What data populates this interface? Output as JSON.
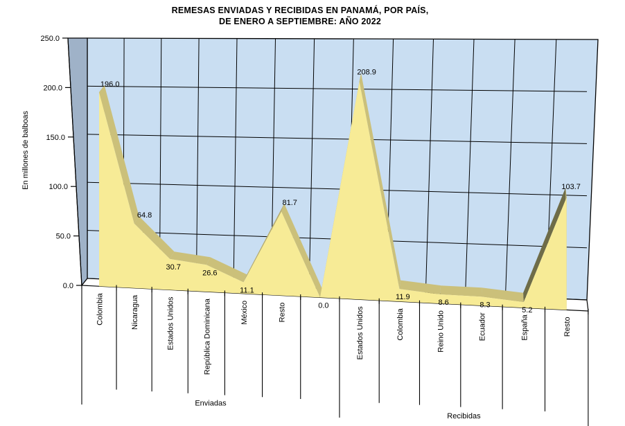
{
  "title": {
    "line1": "REMESAS ENVIADAS Y RECIBIDAS EN PANAMÁ, POR PAÍS,",
    "line2": "DE ENERO A SEPTIEMBRE: AÑO 2022"
  },
  "chart_data": {
    "type": "area",
    "projection": "3d",
    "title": "REMESAS ENVIADAS Y RECIBIDAS EN PANAMÁ, POR PAÍS, DE ENERO A SEPTIEMBRE: AÑO 2022",
    "ylabel": "En millones de balboas",
    "ylim": [
      0,
      250
    ],
    "y_tick_step": 50,
    "y_tick_labels": [
      "0.0",
      "50.0",
      "100.0",
      "150.0",
      "200.0",
      "250.0"
    ],
    "grid": true,
    "categories": [
      "Colombia",
      "Nicaragua",
      "Estados Unidos",
      "República Dominicana",
      "México",
      "Resto",
      "",
      "Estados Unidos",
      "Colombia",
      "Reino Unido",
      "Ecuador",
      "España",
      "Resto"
    ],
    "values": [
      196.0,
      64.8,
      30.7,
      26.6,
      11.1,
      81.7,
      0.0,
      208.9,
      11.9,
      8.6,
      8.3,
      5.2,
      103.7
    ],
    "data_labels": [
      "196.0",
      "64.8",
      "30.7",
      "26.6",
      "11.1",
      "81.7",
      "0.0",
      "208.9",
      "11.9",
      "8.6",
      "8.3",
      "5.2",
      "103.7"
    ],
    "groups": [
      {
        "label": "Enviadas",
        "from": 0,
        "to": 7
      },
      {
        "label": "Recibidas",
        "from": 7,
        "to": 13
      }
    ],
    "colors": {
      "area_front": "#F7EB96",
      "band_light": "#CBC07A",
      "band_medium": "#B5AB6E",
      "band_dark": "#6E6C48",
      "wall_back": "#C9DEF2",
      "wall_side": "#9FB2C8",
      "floor": "#FFFFFF",
      "line": "#000000",
      "text": "#000000"
    }
  }
}
